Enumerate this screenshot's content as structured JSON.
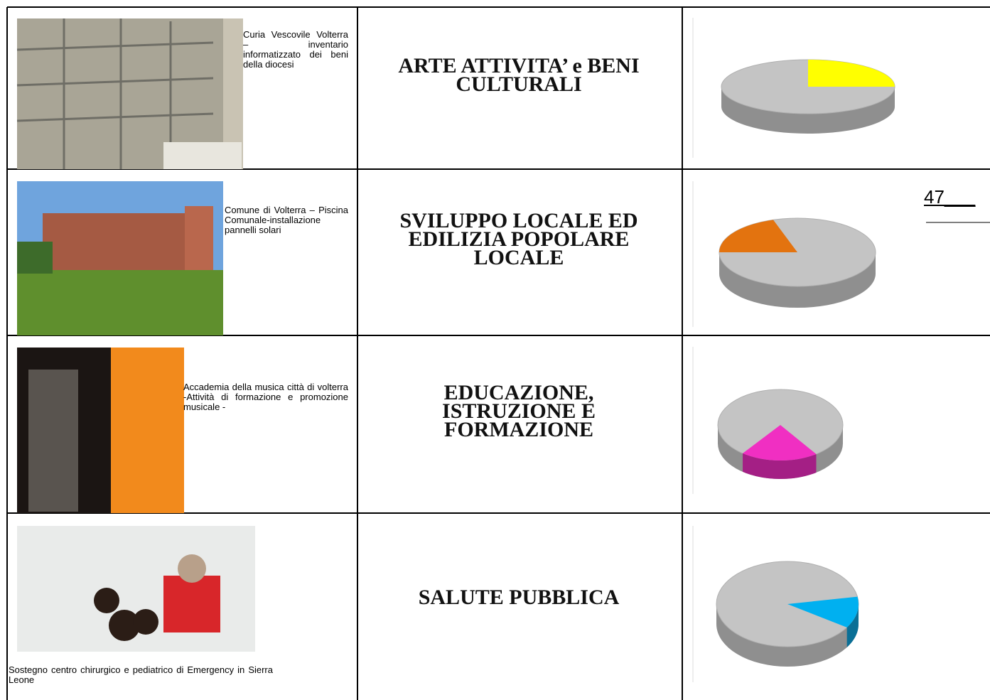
{
  "page_number": "47___",
  "table": {
    "rows": [
      {
        "caption": "Curia Vescovile Volterra – inventario informatizzato dei beni della diocesi",
        "title": "ARTE ATTIVITA’ e BENI CULTURALI",
        "share": 25
      },
      {
        "caption": "Comune di Volterra – Piscina Comunale-installazione pannelli solari",
        "title": "SVILUPPO LOCALE ED EDILIZIA POPOLARE LOCALE",
        "share": 20
      },
      {
        "caption": "Accademia della musica città di volterra -Attività di formazione e promozione musicale -",
        "title": "EDUCAZIONE, ISTRUZIONE E FORMAZIONE",
        "share": 20
      },
      {
        "caption": "Sostegno centro chirurgico e pediatrico di Emergency in Sierra Leone",
        "title": "SALUTE PUBBLICA",
        "share": 12
      }
    ]
  }
}
